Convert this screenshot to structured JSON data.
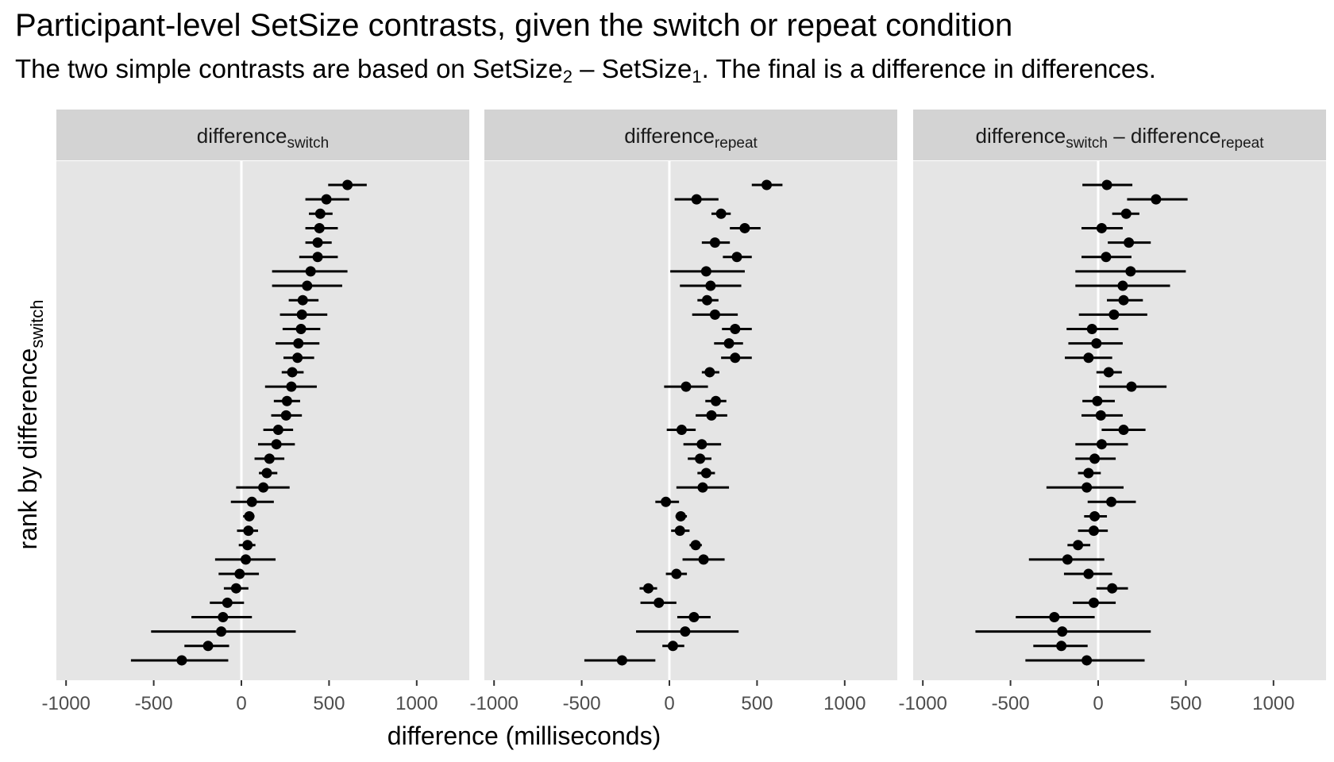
{
  "title": "Participant-level SetSize contrasts, given the switch or repeat condition",
  "subtitle": {
    "part1": "The two simple contrasts are based on SetSize",
    "sub1": "2",
    "minus": " – SetSize",
    "sub2": "1",
    "part2": ". The final is a difference in differences."
  },
  "chart_data": {
    "type": "pointrange",
    "xlabel": "difference (milliseconds)",
    "ylabel": {
      "text": "rank by difference",
      "subscript": "switch"
    },
    "xlim": [
      -1000,
      1300
    ],
    "xticks": [
      -1000,
      -500,
      0,
      500,
      1000
    ],
    "xtick_labels": [
      "-1000",
      "-500",
      "0",
      "500",
      "1000"
    ],
    "reference_line": 0,
    "grid": false,
    "colors": {
      "panel": "#e5e5e5",
      "strip": "#d3d3d3",
      "point": "#000000",
      "zero_line": "#ffffff"
    },
    "panels": [
      {
        "label": [
          {
            "text": "difference"
          },
          {
            "text": "switch",
            "sub": true
          }
        ],
        "points": [
          {
            "est": 605,
            "lo": 495,
            "hi": 715
          },
          {
            "est": 485,
            "lo": 365,
            "hi": 615
          },
          {
            "est": 450,
            "lo": 385,
            "hi": 520
          },
          {
            "est": 445,
            "lo": 365,
            "hi": 550
          },
          {
            "est": 435,
            "lo": 365,
            "hi": 515
          },
          {
            "est": 435,
            "lo": 330,
            "hi": 550
          },
          {
            "est": 395,
            "lo": 175,
            "hi": 605
          },
          {
            "est": 375,
            "lo": 175,
            "hi": 575
          },
          {
            "est": 350,
            "lo": 270,
            "hi": 440
          },
          {
            "est": 345,
            "lo": 220,
            "hi": 490
          },
          {
            "est": 340,
            "lo": 235,
            "hi": 450
          },
          {
            "est": 325,
            "lo": 195,
            "hi": 445
          },
          {
            "est": 320,
            "lo": 240,
            "hi": 415
          },
          {
            "est": 290,
            "lo": 230,
            "hi": 355
          },
          {
            "est": 285,
            "lo": 135,
            "hi": 430
          },
          {
            "est": 260,
            "lo": 185,
            "hi": 335
          },
          {
            "est": 255,
            "lo": 170,
            "hi": 345
          },
          {
            "est": 210,
            "lo": 125,
            "hi": 295
          },
          {
            "est": 200,
            "lo": 95,
            "hi": 305
          },
          {
            "est": 160,
            "lo": 75,
            "hi": 245
          },
          {
            "est": 145,
            "lo": 100,
            "hi": 205
          },
          {
            "est": 125,
            "lo": -30,
            "hi": 275
          },
          {
            "est": 60,
            "lo": -60,
            "hi": 185
          },
          {
            "est": 45,
            "lo": 10,
            "hi": 75
          },
          {
            "est": 40,
            "lo": -25,
            "hi": 95
          },
          {
            "est": 35,
            "lo": -15,
            "hi": 80
          },
          {
            "est": 25,
            "lo": -150,
            "hi": 195
          },
          {
            "est": -10,
            "lo": -130,
            "hi": 100
          },
          {
            "est": -30,
            "lo": -100,
            "hi": 40
          },
          {
            "est": -80,
            "lo": -180,
            "hi": 15
          },
          {
            "est": -105,
            "lo": -285,
            "hi": 60
          },
          {
            "est": -115,
            "lo": -515,
            "hi": 310
          },
          {
            "est": -190,
            "lo": -325,
            "hi": -70
          },
          {
            "est": -340,
            "lo": -630,
            "hi": -75
          }
        ]
      },
      {
        "label": [
          {
            "text": "difference"
          },
          {
            "text": "repeat",
            "sub": true
          }
        ],
        "points": [
          {
            "est": 555,
            "lo": 470,
            "hi": 645
          },
          {
            "est": 155,
            "lo": 30,
            "hi": 280
          },
          {
            "est": 295,
            "lo": 240,
            "hi": 350
          },
          {
            "est": 430,
            "lo": 345,
            "hi": 520
          },
          {
            "est": 260,
            "lo": 185,
            "hi": 345
          },
          {
            "est": 385,
            "lo": 305,
            "hi": 470
          },
          {
            "est": 210,
            "lo": 5,
            "hi": 430
          },
          {
            "est": 235,
            "lo": 60,
            "hi": 410
          },
          {
            "est": 215,
            "lo": 160,
            "hi": 280
          },
          {
            "est": 260,
            "lo": 130,
            "hi": 390
          },
          {
            "est": 375,
            "lo": 300,
            "hi": 470
          },
          {
            "est": 340,
            "lo": 255,
            "hi": 420
          },
          {
            "est": 375,
            "lo": 295,
            "hi": 470
          },
          {
            "est": 230,
            "lo": 185,
            "hi": 285
          },
          {
            "est": 95,
            "lo": -30,
            "hi": 220
          },
          {
            "est": 265,
            "lo": 205,
            "hi": 325
          },
          {
            "est": 240,
            "lo": 150,
            "hi": 330
          },
          {
            "est": 70,
            "lo": -15,
            "hi": 150
          },
          {
            "est": 185,
            "lo": 80,
            "hi": 295
          },
          {
            "est": 175,
            "lo": 105,
            "hi": 240
          },
          {
            "est": 210,
            "lo": 160,
            "hi": 260
          },
          {
            "est": 190,
            "lo": 40,
            "hi": 340
          },
          {
            "est": -20,
            "lo": -80,
            "hi": 55
          },
          {
            "est": 65,
            "lo": 35,
            "hi": 100
          },
          {
            "est": 60,
            "lo": 10,
            "hi": 115
          },
          {
            "est": 150,
            "lo": 115,
            "hi": 185
          },
          {
            "est": 195,
            "lo": 75,
            "hi": 315
          },
          {
            "est": 40,
            "lo": -20,
            "hi": 100
          },
          {
            "est": -120,
            "lo": -170,
            "hi": -70
          },
          {
            "est": -60,
            "lo": -165,
            "hi": 40
          },
          {
            "est": 140,
            "lo": 45,
            "hi": 235
          },
          {
            "est": 90,
            "lo": -190,
            "hi": 395
          },
          {
            "est": 20,
            "lo": -40,
            "hi": 85
          },
          {
            "est": -270,
            "lo": -485,
            "hi": -80
          }
        ]
      },
      {
        "label": [
          {
            "text": "difference"
          },
          {
            "text": "switch",
            "sub": true
          },
          {
            "text": " – difference"
          },
          {
            "text": "repeat",
            "sub": true
          }
        ],
        "points": [
          {
            "est": 50,
            "lo": -90,
            "hi": 195
          },
          {
            "est": 330,
            "lo": 165,
            "hi": 510
          },
          {
            "est": 160,
            "lo": 80,
            "hi": 235
          },
          {
            "est": 20,
            "lo": -95,
            "hi": 140
          },
          {
            "est": 175,
            "lo": 55,
            "hi": 300
          },
          {
            "est": 45,
            "lo": -95,
            "hi": 190
          },
          {
            "est": 185,
            "lo": -130,
            "hi": 500
          },
          {
            "est": 140,
            "lo": -130,
            "hi": 410
          },
          {
            "est": 145,
            "lo": 50,
            "hi": 255
          },
          {
            "est": 90,
            "lo": -110,
            "hi": 280
          },
          {
            "est": -35,
            "lo": -180,
            "hi": 115
          },
          {
            "est": -10,
            "lo": -170,
            "hi": 140
          },
          {
            "est": -55,
            "lo": -190,
            "hi": 80
          },
          {
            "est": 60,
            "lo": -10,
            "hi": 135
          },
          {
            "est": 190,
            "lo": 5,
            "hi": 390
          },
          {
            "est": -5,
            "lo": -90,
            "hi": 95
          },
          {
            "est": 15,
            "lo": -95,
            "hi": 140
          },
          {
            "est": 145,
            "lo": 20,
            "hi": 270
          },
          {
            "est": 20,
            "lo": -130,
            "hi": 170
          },
          {
            "est": -20,
            "lo": -130,
            "hi": 100
          },
          {
            "est": -55,
            "lo": -115,
            "hi": 15
          },
          {
            "est": -65,
            "lo": -295,
            "hi": 145
          },
          {
            "est": 75,
            "lo": -60,
            "hi": 215
          },
          {
            "est": -20,
            "lo": -80,
            "hi": 50
          },
          {
            "est": -25,
            "lo": -115,
            "hi": 55
          },
          {
            "est": -115,
            "lo": -175,
            "hi": -45
          },
          {
            "est": -175,
            "lo": -395,
            "hi": 35
          },
          {
            "est": -55,
            "lo": -195,
            "hi": 80
          },
          {
            "est": 80,
            "lo": -10,
            "hi": 170
          },
          {
            "est": -25,
            "lo": -145,
            "hi": 100
          },
          {
            "est": -250,
            "lo": -470,
            "hi": -20
          },
          {
            "est": -205,
            "lo": -700,
            "hi": 300
          },
          {
            "est": -210,
            "lo": -370,
            "hi": -60
          },
          {
            "est": -65,
            "lo": -415,
            "hi": 265
          }
        ]
      }
    ]
  }
}
